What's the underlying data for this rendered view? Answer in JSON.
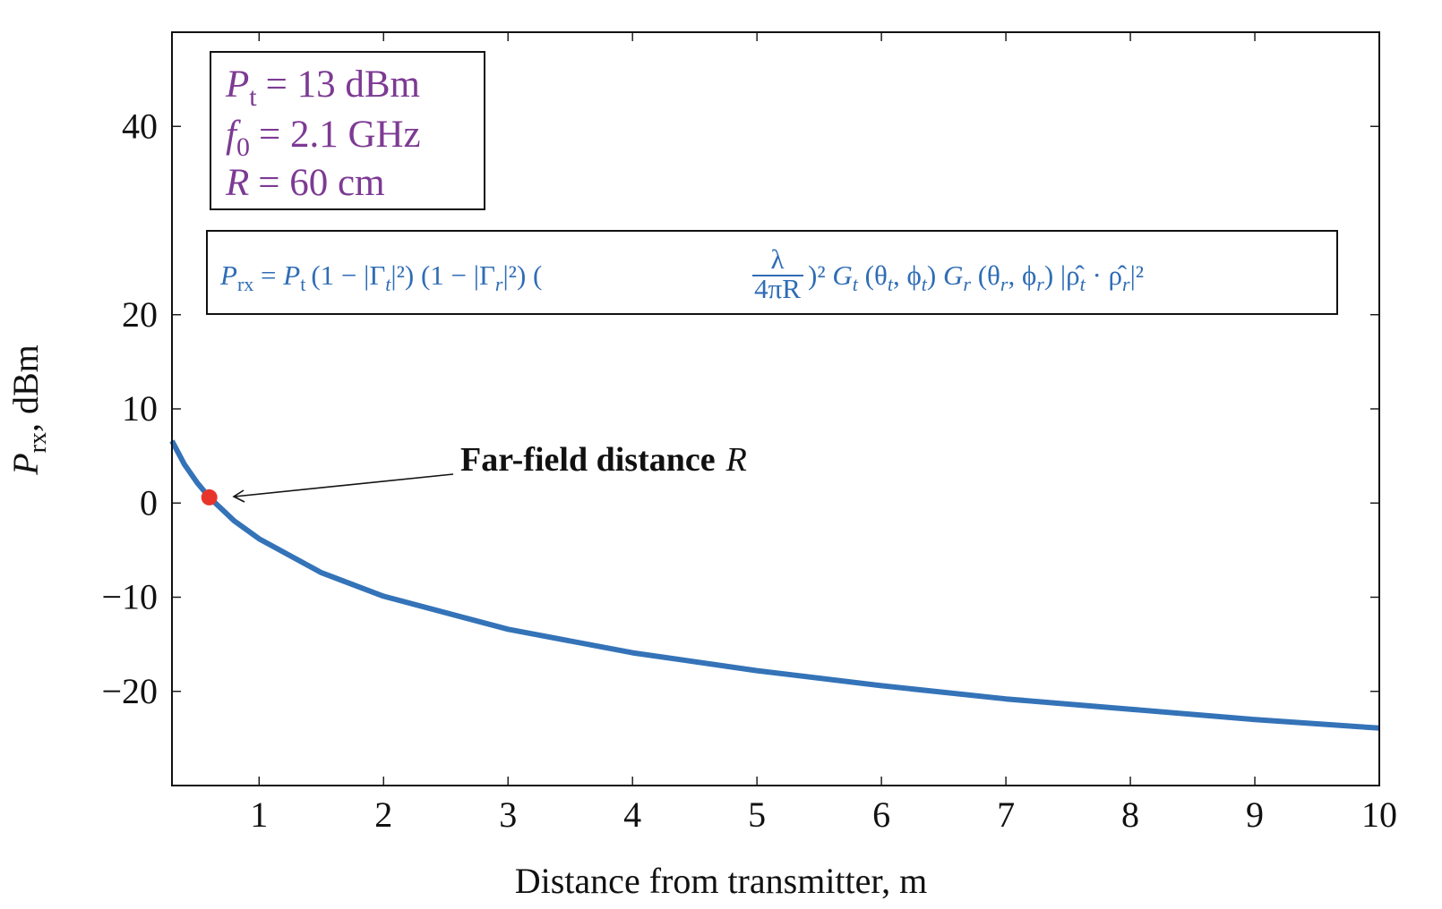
{
  "chart_data": {
    "type": "line",
    "xlabel": "Distance from transmitter, m",
    "ylabel": "P",
    "ylabel_sub": "rx",
    "ylabel_unit": ", dBm",
    "xlim": [
      0.3,
      10
    ],
    "ylim": [
      -30,
      50
    ],
    "xticks": [
      1,
      2,
      3,
      4,
      5,
      6,
      7,
      8,
      9,
      10
    ],
    "yticks": [
      -20,
      -10,
      0,
      10,
      20,
      40
    ],
    "grid": false,
    "series": [
      {
        "color": "#3473b8",
        "x": [
          0.3,
          0.4,
          0.5,
          0.6,
          0.8,
          1,
          1.5,
          2,
          3,
          4,
          5,
          6,
          7,
          8,
          9,
          10
        ],
        "y": [
          6.6,
          4.1,
          2.2,
          0.6,
          -1.9,
          -3.8,
          -7.4,
          -9.9,
          -13.4,
          -15.9,
          -17.8,
          -19.4,
          -20.8,
          -21.9,
          -23.0,
          -23.9
        ]
      }
    ],
    "marker": {
      "x": 0.6,
      "y": 0.6,
      "color": "#e8352b"
    },
    "annotation": {
      "text": "Far-field distance",
      "symbol": "R"
    },
    "params": [
      {
        "sym": "P",
        "sub": "t",
        "rest": "= 13 dBm"
      },
      {
        "sym": "f",
        "sub": "0",
        "rest": "= 2.1 GHz"
      },
      {
        "sym": "R",
        "sub": "",
        "rest": "= 60 cm"
      }
    ],
    "formula": {
      "p1": "P",
      "s1": "rx",
      "p2": " = ",
      "p3": "P",
      "s3": "t",
      "p4": "(1 − |Γ",
      "s4": "t",
      "p5": "|²) (1 − |Γ",
      "s5": "r",
      "p6": "|²) (",
      "frac_num": "λ",
      "frac_den": "4πR",
      "p7": ")² ",
      "p8": "G",
      "s8": "t",
      "p9": " (θ",
      "s9": "t",
      "p10": ", ϕ",
      "s10": "t",
      "p11": ") ",
      "p12": "G",
      "s12": "r",
      "p13": " (θ",
      "s13": "r",
      "p14": ", ϕ",
      "s14": "r",
      "p15": ") |ρ̂",
      "s15": "t",
      "p16": " · ρ̂",
      "s16": "r",
      "p17": "|²"
    }
  }
}
